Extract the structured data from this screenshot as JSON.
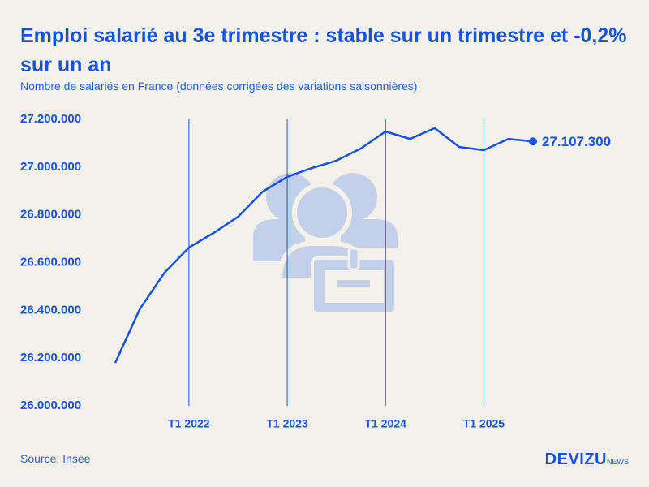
{
  "chart_data": {
    "type": "line",
    "title": "Emploi salarié au 3e trimestre : stable sur un trimestre et -0,2% sur un an",
    "subtitle": "Nombre de salariés en France (données corrigées des variations saisonnières)",
    "source": "Source: Insee",
    "brand": "DEVIZU",
    "brand_suffix": "NEWS",
    "color": "#1652e0",
    "categories": [
      null,
      null,
      null,
      "T1 2022",
      null,
      null,
      null,
      "T1 2023",
      null,
      null,
      null,
      "T1 2024",
      null,
      null,
      null,
      "T1 2025",
      null,
      null
    ],
    "values": [
      26180000,
      26405000,
      26557000,
      26663000,
      26724000,
      26792000,
      26897000,
      26959000,
      26996000,
      27027000,
      27078000,
      27149000,
      27118000,
      27163000,
      27084000,
      27071000,
      27118000,
      27107300
    ],
    "value_labels": [
      null,
      null,
      null,
      null,
      null,
      null,
      null,
      null,
      null,
      null,
      null,
      null,
      null,
      null,
      null,
      null,
      null,
      "27.107.300"
    ],
    "ylim": [
      26000000,
      27200000
    ],
    "yticks": [
      {
        "value": 26000000,
        "label": "26.000.000"
      },
      {
        "value": 26200000,
        "label": "26.200.000"
      },
      {
        "value": 26400000,
        "label": "26.400.000"
      },
      {
        "value": 26600000,
        "label": "26.600.000"
      },
      {
        "value": 26800000,
        "label": "26.800.000"
      },
      {
        "value": 27000000,
        "label": "27.000.000"
      },
      {
        "value": 27200000,
        "label": "27.200.000"
      }
    ]
  }
}
